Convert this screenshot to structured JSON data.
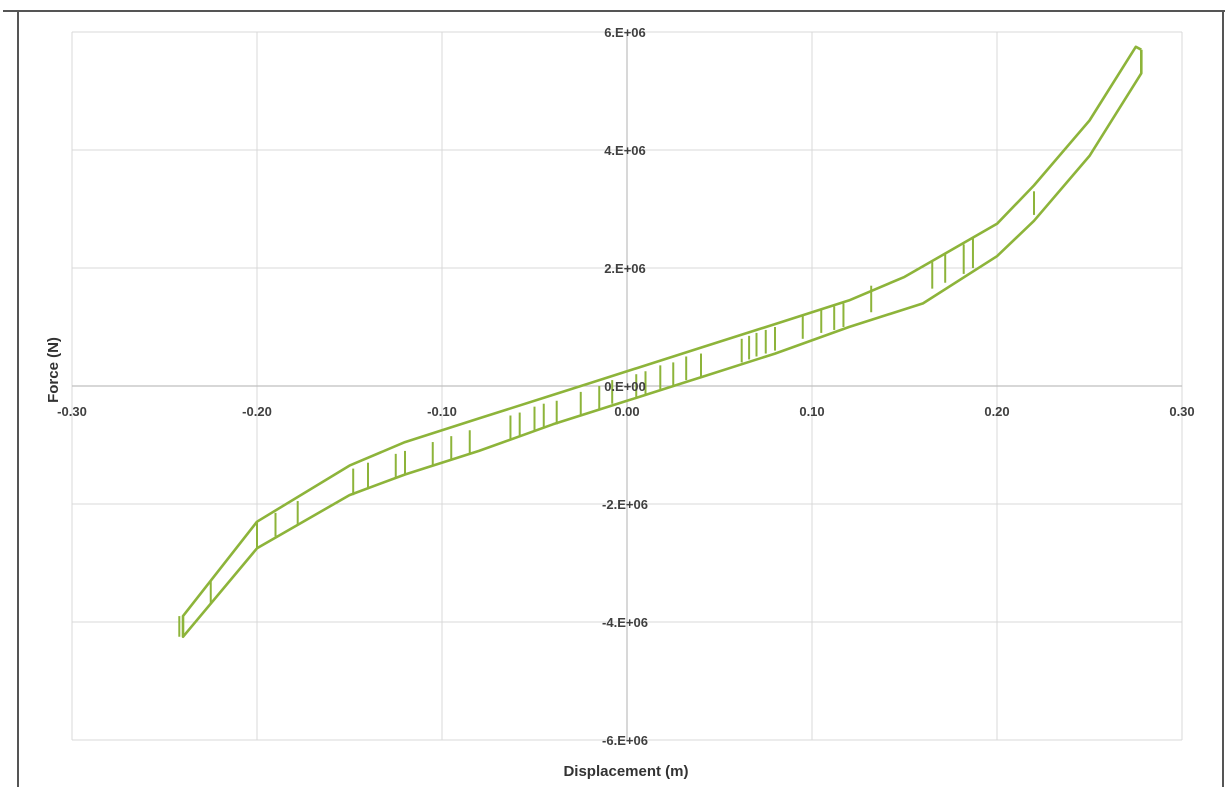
{
  "chart_data": {
    "type": "line",
    "title": "",
    "xlabel": "Displacement (m)",
    "ylabel": "Force (N)",
    "xlim": [
      -0.3,
      0.3
    ],
    "ylim": [
      -6000000,
      6000000
    ],
    "x_ticks": [
      -0.3,
      -0.2,
      -0.1,
      0.0,
      0.1,
      0.2,
      0.3
    ],
    "x_tick_labels": [
      "-0.30",
      "-0.20",
      "-0.10",
      "0.00",
      "0.10",
      "0.20",
      "0.30"
    ],
    "y_ticks": [
      6000000,
      4000000,
      2000000,
      0,
      -2000000,
      -4000000,
      -6000000
    ],
    "y_tick_labels": [
      "6.E+06",
      "4.E+06",
      "2.E+06",
      "0.E+00",
      "-2.E+06",
      "-4.E+06",
      "-6.E+06"
    ],
    "grid": true,
    "series_color": "#8DB43A",
    "grid_color": "#D9D9D9",
    "axis_color": "#BFBFBF",
    "series": [
      {
        "name": "",
        "x": [
          0.278,
          0.278,
          0.25,
          0.22,
          0.2,
          0.16,
          0.12,
          0.08,
          0.04,
          0.0,
          -0.04,
          -0.08,
          -0.12,
          -0.15,
          -0.2,
          -0.24,
          -0.24,
          -0.2,
          -0.15,
          -0.12,
          -0.08,
          -0.04,
          0.0,
          0.04,
          0.08,
          0.12,
          0.15,
          0.2,
          0.22,
          0.25,
          0.275,
          0.278
        ],
        "y": [
          5700000,
          5300000,
          3900000,
          2800000,
          2200000,
          1400000,
          1000000,
          550000,
          150000,
          -250000,
          -650000,
          -1100000,
          -1500000,
          -1850000,
          -2750000,
          -4250000,
          -3900000,
          -2300000,
          -1350000,
          -950000,
          -550000,
          -150000,
          250000,
          650000,
          1050000,
          1450000,
          1850000,
          2750000,
          3400000,
          4500000,
          5750000,
          5700000
        ]
      }
    ],
    "steps": [
      {
        "x": -0.242,
        "y_low": -4250000,
        "y_high": -3900000
      },
      {
        "x": -0.225,
        "y_low": -3700000,
        "y_high": -3300000
      },
      {
        "x": -0.2,
        "y_low": -2750000,
        "y_high": -2300000
      },
      {
        "x": -0.19,
        "y_low": -2550000,
        "y_high": -2150000
      },
      {
        "x": -0.178,
        "y_low": -2350000,
        "y_high": -1950000
      },
      {
        "x": -0.148,
        "y_low": -1850000,
        "y_high": -1400000
      },
      {
        "x": -0.14,
        "y_low": -1750000,
        "y_high": -1300000
      },
      {
        "x": -0.125,
        "y_low": -1550000,
        "y_high": -1150000
      },
      {
        "x": -0.12,
        "y_low": -1500000,
        "y_high": -1100000
      },
      {
        "x": -0.105,
        "y_low": -1350000,
        "y_high": -950000
      },
      {
        "x": -0.095,
        "y_low": -1250000,
        "y_high": -850000
      },
      {
        "x": -0.085,
        "y_low": -1150000,
        "y_high": -750000
      },
      {
        "x": -0.063,
        "y_low": -900000,
        "y_high": -500000
      },
      {
        "x": -0.058,
        "y_low": -850000,
        "y_high": -450000
      },
      {
        "x": -0.05,
        "y_low": -750000,
        "y_high": -350000
      },
      {
        "x": -0.045,
        "y_low": -700000,
        "y_high": -300000
      },
      {
        "x": -0.038,
        "y_low": -650000,
        "y_high": -250000
      },
      {
        "x": -0.025,
        "y_low": -500000,
        "y_high": -100000
      },
      {
        "x": -0.015,
        "y_low": -400000,
        "y_high": 0
      },
      {
        "x": -0.008,
        "y_low": -300000,
        "y_high": 100000
      },
      {
        "x": 0.005,
        "y_low": -200000,
        "y_high": 200000
      },
      {
        "x": 0.01,
        "y_low": -150000,
        "y_high": 250000
      },
      {
        "x": 0.018,
        "y_low": -50000,
        "y_high": 350000
      },
      {
        "x": 0.025,
        "y_low": 0,
        "y_high": 400000
      },
      {
        "x": 0.032,
        "y_low": 100000,
        "y_high": 500000
      },
      {
        "x": 0.04,
        "y_low": 150000,
        "y_high": 550000
      },
      {
        "x": 0.062,
        "y_low": 400000,
        "y_high": 800000
      },
      {
        "x": 0.066,
        "y_low": 450000,
        "y_high": 850000
      },
      {
        "x": 0.07,
        "y_low": 500000,
        "y_high": 900000
      },
      {
        "x": 0.075,
        "y_low": 550000,
        "y_high": 950000
      },
      {
        "x": 0.08,
        "y_low": 600000,
        "y_high": 1000000
      },
      {
        "x": 0.095,
        "y_low": 800000,
        "y_high": 1200000
      },
      {
        "x": 0.105,
        "y_low": 900000,
        "y_high": 1300000
      },
      {
        "x": 0.112,
        "y_low": 950000,
        "y_high": 1350000
      },
      {
        "x": 0.117,
        "y_low": 1000000,
        "y_high": 1400000
      },
      {
        "x": 0.132,
        "y_low": 1250000,
        "y_high": 1700000
      },
      {
        "x": 0.165,
        "y_low": 1650000,
        "y_high": 2100000
      },
      {
        "x": 0.172,
        "y_low": 1750000,
        "y_high": 2250000
      },
      {
        "x": 0.182,
        "y_low": 1900000,
        "y_high": 2400000
      },
      {
        "x": 0.187,
        "y_low": 2000000,
        "y_high": 2500000
      },
      {
        "x": 0.22,
        "y_low": 2900000,
        "y_high": 3300000
      }
    ]
  }
}
